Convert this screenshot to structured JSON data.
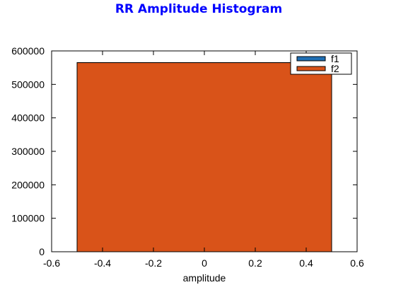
{
  "chart_data": {
    "type": "bar",
    "title": "RR Amplitude Histogram",
    "xlabel": "amplitude",
    "ylabel": "",
    "xlim": [
      -0.6,
      0.6
    ],
    "ylim": [
      0,
      600000
    ],
    "xticks": [
      -0.6,
      -0.4,
      -0.2,
      0,
      0.2,
      0.4,
      0.6
    ],
    "xtick_labels": [
      "-0.6",
      "-0.4",
      "-0.2",
      "0",
      "0.2",
      "0.4",
      "0.6"
    ],
    "yticks": [
      0,
      100000,
      200000,
      300000,
      400000,
      500000,
      600000
    ],
    "ytick_labels": [
      "0",
      "100000",
      "200000",
      "300000",
      "400000",
      "500000",
      "600000"
    ],
    "grid": false,
    "legend_position": "top-right",
    "series": [
      {
        "name": "f1",
        "color": "#1f6fb4",
        "bins": [
          {
            "x0": -0.5,
            "x1": 0.5,
            "count": 565000
          }
        ]
      },
      {
        "name": "f2",
        "color": "#d95319",
        "bins": [
          {
            "x0": -0.5,
            "x1": 0.5,
            "count": 565000
          }
        ]
      }
    ]
  }
}
